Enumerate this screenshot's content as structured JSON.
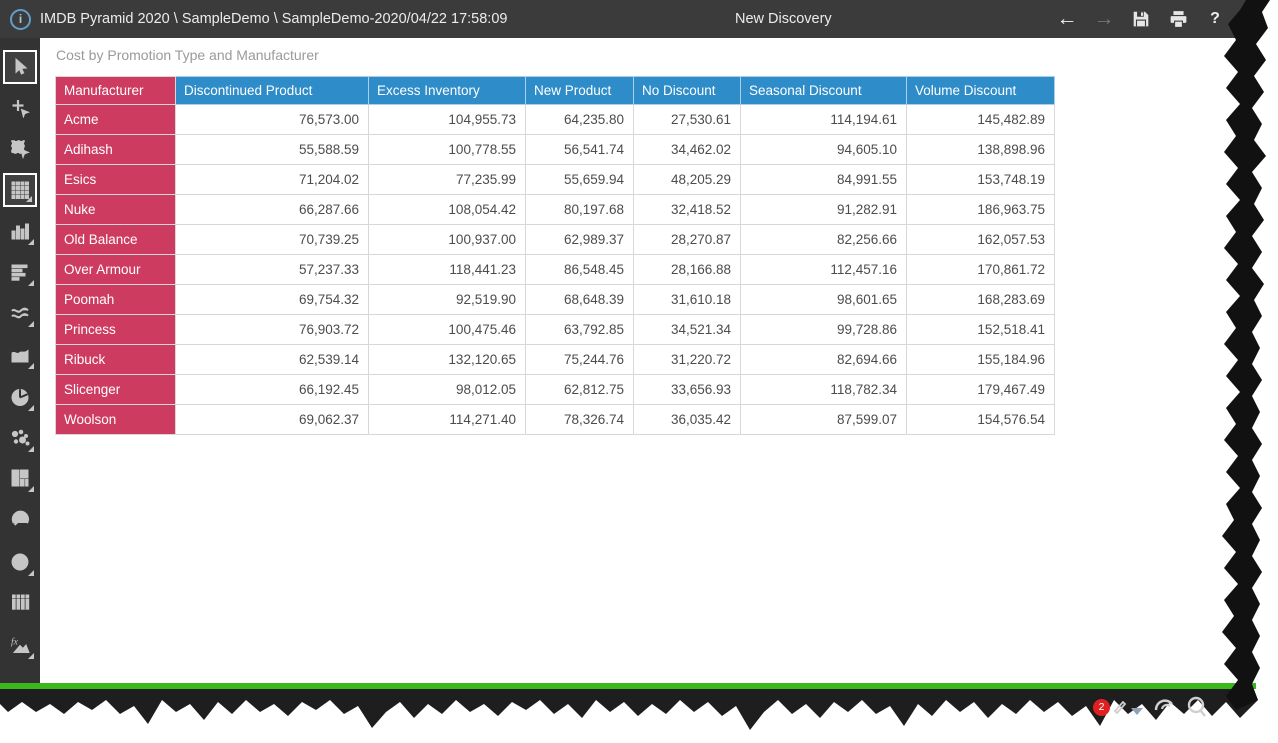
{
  "titlebar": {
    "breadcrumb": "IMDB Pyramid 2020 \\ SampleDemo \\ SampleDemo-2020/04/22 17:58:09",
    "title": "New Discovery",
    "help": "?",
    "back": "←",
    "forward": "→"
  },
  "sidebar": {
    "tools": [
      "select",
      "add-select",
      "marquee-select",
      "grid-view",
      "column-chart",
      "bar-chart",
      "line-chart",
      "area-chart",
      "pie-chart",
      "scatter-chart",
      "treemap-chart",
      "gauge-chart",
      "map-globe",
      "small-multiples",
      "formulas-fx"
    ],
    "selected": [
      "select",
      "grid-view"
    ]
  },
  "grid": {
    "title": "Cost by Promotion Type and Manufacturer",
    "columns": [
      "Manufacturer",
      "Discontinued Product",
      "Excess Inventory",
      "New Product",
      "No Discount",
      "Seasonal Discount",
      "Volume Discount"
    ],
    "rows": [
      {
        "manufacturer": "Acme",
        "values": [
          "76,573.00",
          "104,955.73",
          "64,235.80",
          "27,530.61",
          "114,194.61",
          "145,482.89"
        ]
      },
      {
        "manufacturer": "Adihash",
        "values": [
          "55,588.59",
          "100,778.55",
          "56,541.74",
          "34,462.02",
          "94,605.10",
          "138,898.96"
        ]
      },
      {
        "manufacturer": "Esics",
        "values": [
          "71,204.02",
          "77,235.99",
          "55,659.94",
          "48,205.29",
          "84,991.55",
          "153,748.19"
        ]
      },
      {
        "manufacturer": "Nuke",
        "values": [
          "66,287.66",
          "108,054.42",
          "80,197.68",
          "32,418.52",
          "91,282.91",
          "186,963.75"
        ]
      },
      {
        "manufacturer": "Old Balance",
        "values": [
          "70,739.25",
          "100,937.00",
          "62,989.37",
          "28,270.87",
          "82,256.66",
          "162,057.53"
        ]
      },
      {
        "manufacturer": "Over Armour",
        "values": [
          "57,237.33",
          "118,441.23",
          "86,548.45",
          "28,166.88",
          "112,457.16",
          "170,861.72"
        ]
      },
      {
        "manufacturer": "Poomah",
        "values": [
          "69,754.32",
          "92,519.90",
          "68,648.39",
          "31,610.18",
          "98,601.65",
          "168,283.69"
        ]
      },
      {
        "manufacturer": "Princess",
        "values": [
          "76,903.72",
          "100,475.46",
          "63,792.85",
          "34,521.34",
          "99,728.86",
          "152,518.41"
        ]
      },
      {
        "manufacturer": "Ribuck",
        "values": [
          "62,539.14",
          "132,120.65",
          "75,244.76",
          "31,220.72",
          "82,694.66",
          "155,184.96"
        ]
      },
      {
        "manufacturer": "Slicenger",
        "values": [
          "66,192.45",
          "98,012.05",
          "62,812.75",
          "33,656.93",
          "118,782.34",
          "179,467.49"
        ]
      },
      {
        "manufacturer": "Woolson",
        "values": [
          "69,062.37",
          "114,271.40",
          "78,326.74",
          "36,035.42",
          "87,599.07",
          "154,576.54"
        ]
      }
    ]
  },
  "statusbar": {
    "badge_count": "2"
  },
  "colors": {
    "header_blue": "#2E8CC9",
    "row_crimson": "#CE3B61",
    "accent_green": "#3DB71E",
    "titlebar_dark": "#3B3B3B",
    "badge_red": "#E02020"
  }
}
